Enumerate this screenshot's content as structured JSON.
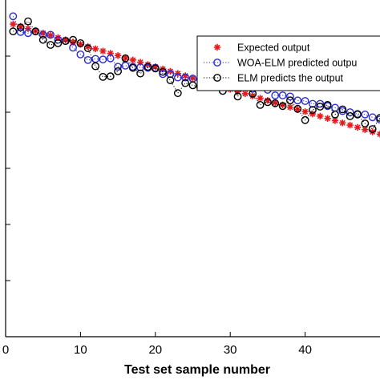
{
  "chart_data": {
    "type": "line",
    "title": "",
    "xlabel": "Test set sample number",
    "ylabel": "",
    "xlim": [
      0,
      50
    ],
    "ylim": [
      0,
      6
    ],
    "grid": false,
    "legend_position": "top-right",
    "xticks": [
      0,
      10,
      20,
      30,
      40
    ],
    "xtick_labels": [
      "0",
      "10",
      "20",
      "30",
      "40"
    ],
    "yticks": [
      1,
      2,
      3,
      4,
      5
    ],
    "x": [
      1,
      2,
      3,
      4,
      5,
      6,
      7,
      8,
      9,
      10,
      11,
      12,
      13,
      14,
      15,
      16,
      17,
      18,
      19,
      20,
      21,
      22,
      23,
      24,
      25,
      26,
      27,
      28,
      29,
      30,
      31,
      32,
      33,
      34,
      35,
      36,
      37,
      38,
      39,
      40,
      41,
      42,
      43,
      44,
      45,
      46,
      47,
      48,
      49,
      50
    ],
    "series": [
      {
        "name": "Expected output",
        "color": "#e41a1c",
        "marker": "asterisk",
        "line": "none",
        "values": [
          5.57,
          5.53,
          5.49,
          5.45,
          5.41,
          5.37,
          5.33,
          5.29,
          5.25,
          5.21,
          5.17,
          5.13,
          5.09,
          5.05,
          5.01,
          4.97,
          4.93,
          4.89,
          4.85,
          4.81,
          4.77,
          4.73,
          4.69,
          4.65,
          4.61,
          4.57,
          4.53,
          4.49,
          4.45,
          4.41,
          4.37,
          4.33,
          4.29,
          4.25,
          4.21,
          4.17,
          4.13,
          4.09,
          4.05,
          4.01,
          3.97,
          3.93,
          3.89,
          3.85,
          3.81,
          3.77,
          3.73,
          3.69,
          3.65,
          3.61
        ]
      },
      {
        "name": "WOA-ELM predicted outpu",
        "color": "#2b2bd6",
        "marker": "circle",
        "line": "dotted",
        "values": [
          5.71,
          5.43,
          5.41,
          5.44,
          5.38,
          5.38,
          5.29,
          5.27,
          5.15,
          5.03,
          4.93,
          4.95,
          4.94,
          4.96,
          4.81,
          4.83,
          4.81,
          4.8,
          4.79,
          4.79,
          4.68,
          4.68,
          4.62,
          4.62,
          4.6,
          4.58,
          4.55,
          4.53,
          4.53,
          4.5,
          4.5,
          4.47,
          4.42,
          4.45,
          4.4,
          4.3,
          4.3,
          4.28,
          4.21,
          4.2,
          4.15,
          4.15,
          4.11,
          4.08,
          4.02,
          4.0,
          3.97,
          3.96,
          3.91,
          3.87
        ]
      },
      {
        "name": "ELM predicts the output",
        "color": "#000000",
        "marker": "circle",
        "line": "dotted",
        "values": [
          5.44,
          5.51,
          5.62,
          5.44,
          5.29,
          5.2,
          5.23,
          5.27,
          5.29,
          5.23,
          5.14,
          4.82,
          4.63,
          4.64,
          4.73,
          4.96,
          4.79,
          4.69,
          4.81,
          4.78,
          4.72,
          4.57,
          4.34,
          4.52,
          4.48,
          4.45,
          4.58,
          4.49,
          4.38,
          4.53,
          4.28,
          4.48,
          4.33,
          4.13,
          4.18,
          4.16,
          4.11,
          4.21,
          4.06,
          3.86,
          4.04,
          4.1,
          4.13,
          3.96,
          4.05,
          3.93,
          3.96,
          3.8,
          3.7,
          3.9
        ]
      }
    ]
  }
}
